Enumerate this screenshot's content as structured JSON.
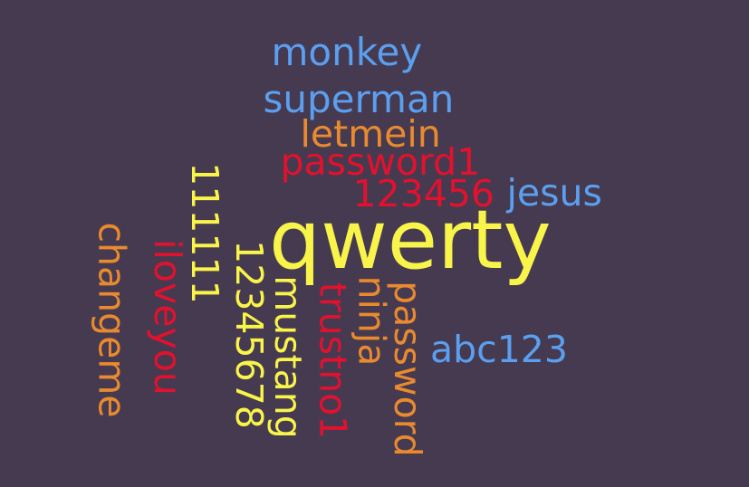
{
  "palette": {
    "background": "#463a50",
    "blue": "#5b9ff0",
    "orange": "#e98a2f",
    "red": "#e2112e",
    "yellow": "#f8f44a"
  },
  "words": [
    {
      "id": "monkey",
      "text": "monkey",
      "color": "#5b9ff0",
      "orientation": "horizontal"
    },
    {
      "id": "superman",
      "text": "superman",
      "color": "#5b9ff0",
      "orientation": "horizontal"
    },
    {
      "id": "letmein",
      "text": "letmein",
      "color": "#e98a2f",
      "orientation": "horizontal"
    },
    {
      "id": "password1",
      "text": "password1",
      "color": "#e2112e",
      "orientation": "horizontal"
    },
    {
      "id": "123456",
      "text": "123456",
      "color": "#e2112e",
      "orientation": "horizontal"
    },
    {
      "id": "jesus",
      "text": "jesus",
      "color": "#5b9ff0",
      "orientation": "horizontal"
    },
    {
      "id": "qwerty",
      "text": "qwerty",
      "color": "#f8f44a",
      "orientation": "horizontal"
    },
    {
      "id": "abc123",
      "text": "abc123",
      "color": "#5b9ff0",
      "orientation": "horizontal"
    },
    {
      "id": "111111",
      "text": "111111",
      "color": "#f8f44a",
      "orientation": "vertical"
    },
    {
      "id": "changeme",
      "text": "changeme",
      "color": "#e98a2f",
      "orientation": "vertical"
    },
    {
      "id": "iloveyou",
      "text": "iloveyou",
      "color": "#e2112e",
      "orientation": "vertical"
    },
    {
      "id": "12345678",
      "text": "12345678",
      "color": "#f8f44a",
      "orientation": "vertical"
    },
    {
      "id": "mustang",
      "text": "mustang",
      "color": "#f8f44a",
      "orientation": "vertical"
    },
    {
      "id": "trustno1",
      "text": "trustno1",
      "color": "#e2112e",
      "orientation": "vertical"
    },
    {
      "id": "ninja",
      "text": "ninja",
      "color": "#e98a2f",
      "orientation": "vertical"
    },
    {
      "id": "password",
      "text": "password",
      "color": "#e98a2f",
      "orientation": "vertical"
    }
  ]
}
